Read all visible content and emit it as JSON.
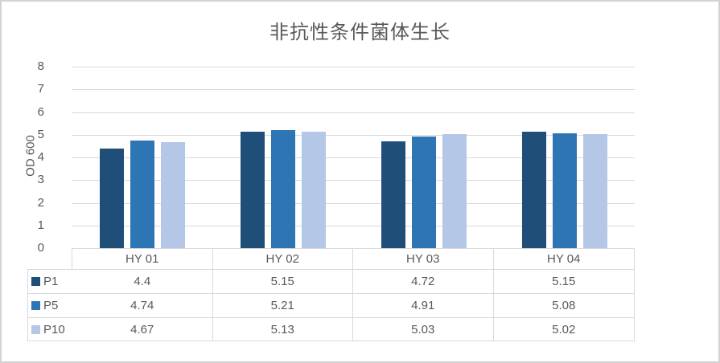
{
  "chart_data": {
    "type": "bar",
    "title": "非抗性条件菌体生长",
    "xlabel": "",
    "ylabel": "OD 600",
    "ylim": [
      0,
      8
    ],
    "yticks": [
      0,
      1,
      2,
      3,
      4,
      5,
      6,
      7,
      8
    ],
    "grid": true,
    "legend_position": "data-table-left",
    "data_table_shown": true,
    "categories": [
      "HY 01",
      "HY 02",
      "HY 03",
      "HY 04"
    ],
    "series": [
      {
        "name": "P1",
        "color": "#1F4E79",
        "values": [
          4.4,
          5.15,
          4.72,
          5.15
        ]
      },
      {
        "name": "P5",
        "color": "#2E75B6",
        "values": [
          4.74,
          5.21,
          4.91,
          5.08
        ]
      },
      {
        "name": "P10",
        "color": "#B4C7E7",
        "values": [
          4.67,
          5.13,
          5.03,
          5.02
        ]
      }
    ]
  },
  "colors": {
    "text": "#595959",
    "gridline": "#D9D9D9",
    "table_border": "#D9D9D9",
    "chart_border": "#D3D3D3",
    "background": "#FFFFFF"
  }
}
